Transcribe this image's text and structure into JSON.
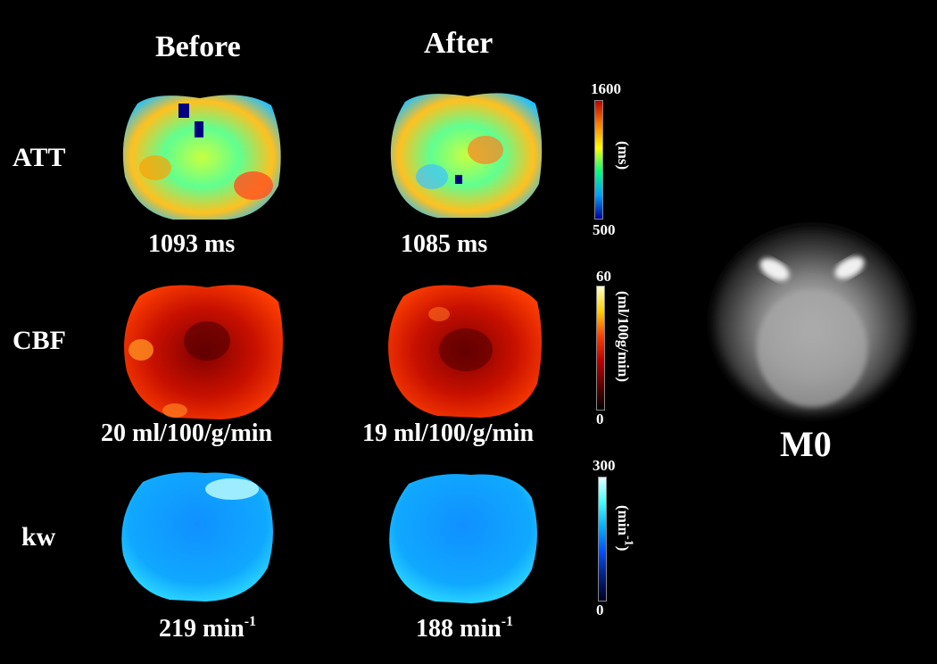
{
  "columns": {
    "before": "Before",
    "after": "After"
  },
  "rows": [
    {
      "label": "ATT",
      "before_value": "1093 ms",
      "after_value": "1085 ms",
      "colorbar": {
        "max": "1600",
        "min": "500",
        "unit": "(ms)",
        "colors": [
          "#0000a0",
          "#00a0ff",
          "#00ff80",
          "#ffff00",
          "#ff8000",
          "#c00000"
        ]
      }
    },
    {
      "label": "CBF",
      "before_value": "20 ml/100/g/min",
      "after_value": "19 ml/100/g/min",
      "colorbar": {
        "max": "60",
        "min": "0",
        "unit": "(ml/100g/min)",
        "colors": [
          "#000000",
          "#600000",
          "#c00000",
          "#ff4000",
          "#ffd000",
          "#ffffc0"
        ]
      }
    },
    {
      "label": "kw",
      "before_value_num": "219 min",
      "after_value_num": "188 min",
      "value_sup": "-1",
      "colorbar": {
        "max": "300",
        "min": "0",
        "unit": "(min",
        "unit_sup": "-1",
        "unit_close": ")",
        "colors": [
          "#000020",
          "#002080",
          "#0050ff",
          "#00b0ff",
          "#40ffff",
          "#e0ffff"
        ]
      }
    }
  ],
  "reference": {
    "label": "M0"
  }
}
